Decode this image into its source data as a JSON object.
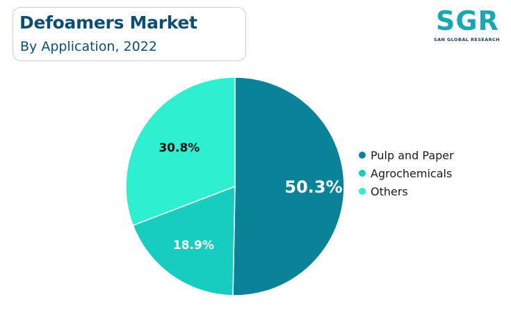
{
  "header": {
    "title": "Defoamers Market",
    "subtitle": "By Application, 2022"
  },
  "logo": {
    "mark": "SGR",
    "name": "SAN GLOBAL RESEARCH"
  },
  "colors": {
    "pulp_and_paper": "#0a8399",
    "agrochemicals": "#17cdc0",
    "others": "#2ef0d0",
    "title": "#0c4f72"
  },
  "chart_data": {
    "type": "pie",
    "slices": [
      {
        "label": "Pulp and Paper",
        "value": 50.3,
        "display": "50.3%",
        "color": "#0a8399",
        "label_color": "#ffffff"
      },
      {
        "label": "Agrochemicals",
        "value": 18.9,
        "display": "18.9%",
        "color": "#17cdc0",
        "label_color": "#ffffff"
      },
      {
        "label": "Others",
        "value": 30.8,
        "display": "30.8%",
        "color": "#2ef0d0",
        "label_color": "#111111"
      }
    ],
    "start": "12 o'clock",
    "direction": "clockwise",
    "legend_position": "right"
  }
}
